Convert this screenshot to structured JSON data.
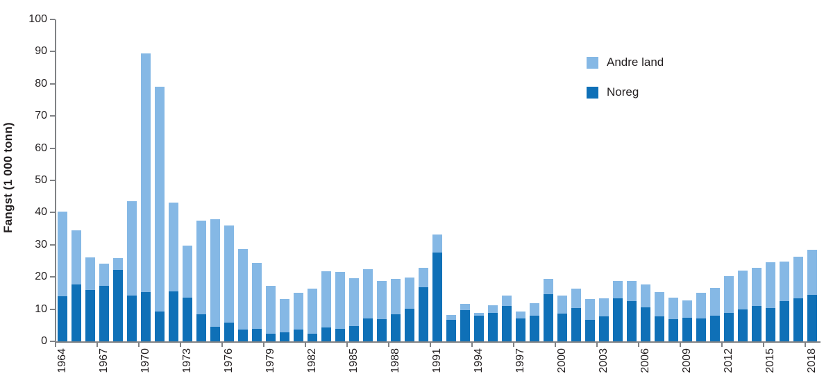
{
  "chart_data": {
    "type": "bar",
    "stacked": true,
    "title": "",
    "ylabel": "Fangst (1 000 tonn)",
    "ylim": [
      0,
      100
    ],
    "ytick_step": 10,
    "grid": false,
    "legend_position": "inside-top-right",
    "x_label_every": 3,
    "x": [
      1964,
      1965,
      1966,
      1967,
      1968,
      1969,
      1970,
      1971,
      1972,
      1973,
      1974,
      1975,
      1976,
      1977,
      1978,
      1979,
      1980,
      1981,
      1982,
      1983,
      1984,
      1985,
      1986,
      1987,
      1988,
      1989,
      1990,
      1991,
      1992,
      1993,
      1994,
      1995,
      1996,
      1997,
      1998,
      1999,
      2000,
      2001,
      2002,
      2003,
      2004,
      2005,
      2006,
      2007,
      2008,
      2009,
      2010,
      2011,
      2012,
      2013,
      2014,
      2015,
      2016,
      2017,
      2018
    ],
    "series": [
      {
        "name": "Noreg",
        "color": "#0f70b7",
        "values": [
          14.0,
          17.6,
          16.0,
          17.3,
          22.2,
          14.3,
          15.3,
          9.3,
          15.5,
          13.5,
          8.5,
          4.6,
          5.9,
          3.7,
          3.9,
          2.4,
          2.8,
          3.6,
          2.4,
          4.3,
          3.9,
          4.8,
          7.2,
          6.8,
          8.5,
          10.1,
          16.9,
          27.5,
          6.6,
          9.8,
          7.9,
          8.9,
          11.0,
          7.2,
          7.9,
          14.7,
          8.6,
          10.4,
          6.6,
          7.7,
          13.4,
          12.6,
          10.6,
          7.7,
          6.8,
          7.3,
          7.2,
          7.9,
          8.8,
          9.9,
          10.9,
          10.3,
          12.5,
          13.3,
          14.4
        ]
      },
      {
        "name": "Andre land",
        "color": "#85b8e5",
        "values": [
          26.3,
          16.9,
          10.0,
          6.9,
          3.7,
          29.2,
          74.2,
          69.7,
          27.5,
          16.3,
          29.0,
          33.4,
          30.1,
          25.0,
          20.5,
          14.8,
          10.4,
          11.4,
          14.0,
          17.5,
          17.7,
          14.9,
          15.3,
          12.0,
          10.9,
          9.7,
          6.0,
          5.7,
          1.5,
          1.9,
          1.0,
          2.3,
          3.2,
          2.0,
          3.9,
          4.6,
          5.6,
          5.9,
          6.5,
          5.6,
          5.4,
          6.1,
          7.0,
          7.5,
          6.8,
          5.4,
          7.8,
          8.6,
          11.5,
          12.1,
          11.9,
          14.3,
          12.3,
          12.9,
          14.1
        ]
      }
    ]
  }
}
